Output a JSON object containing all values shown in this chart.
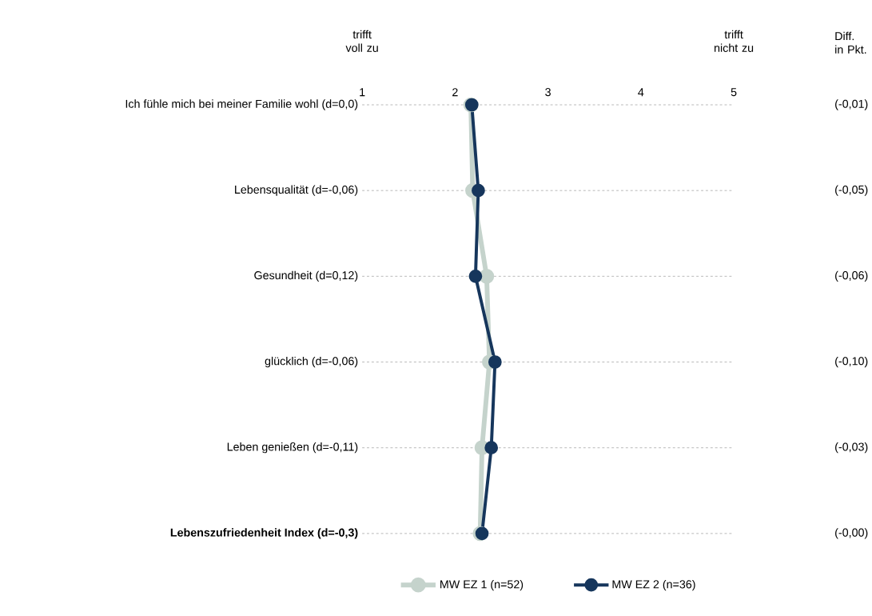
{
  "chart_data": {
    "type": "line",
    "orientation": "horizontal",
    "categories": [
      "Ich fühle mich bei meiner Familie wohl (d=0,0)",
      "Lebensqualität (d=-0,06)",
      "Gesundheit (d=0,12)",
      "glücklich (d=-0,06)",
      "Leben genießen (d=-0,11)",
      "**Lebenszufriedenheit Index (d=-0,3)**"
    ],
    "series": [
      {
        "name": "MW EZ 1 (n=52)",
        "color": "#c5d3cc",
        "values": [
          2.17,
          2.19,
          2.34,
          2.37,
          2.29,
          2.27
        ]
      },
      {
        "name": "MW EZ 2 (n=36)",
        "color": "#16365c",
        "values": [
          2.18,
          2.25,
          2.22,
          2.43,
          2.39,
          2.29
        ]
      }
    ],
    "xlim": [
      1,
      5
    ],
    "xticks": [
      1,
      2,
      3,
      4,
      5
    ],
    "grid": "y",
    "marker": "circle",
    "line_style": "solid",
    "legend": "bottom",
    "annotations": [
      "trifft voll zu",
      "trifft nicht zu",
      "Diff. in Pkt.",
      "(-0,01)",
      "(-0,05)",
      "(-0,06)",
      "(-0,10)",
      "(-0,03)",
      "(-0,00)"
    ]
  }
}
